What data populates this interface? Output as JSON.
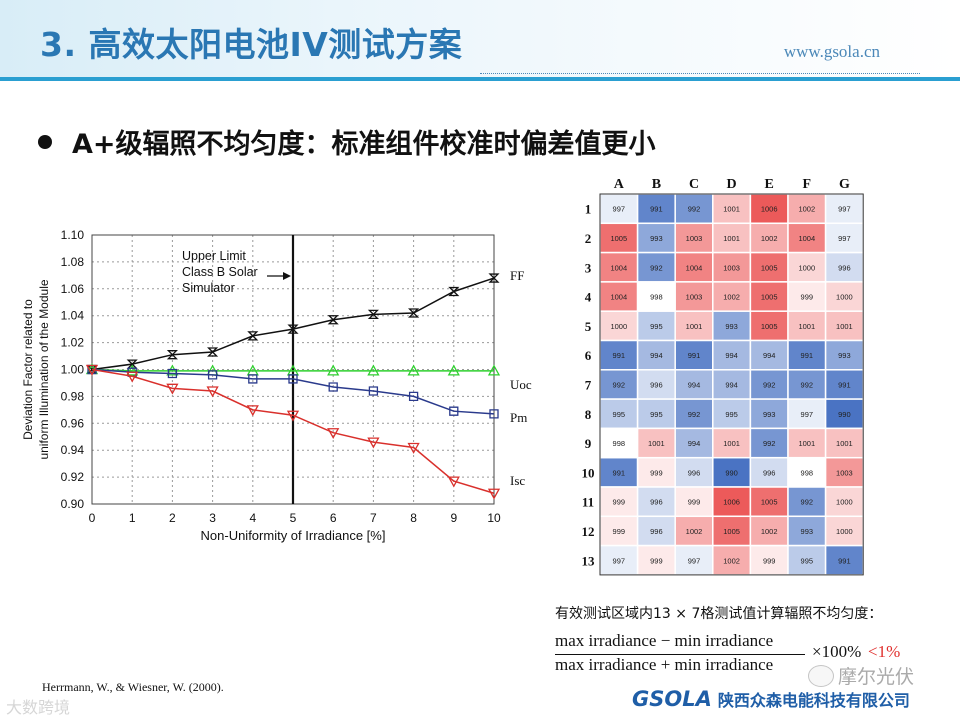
{
  "header": {
    "title": "3. 高效太阳电池IV测试方案",
    "url": "www.gsola.cn"
  },
  "bullet": {
    "text": "A+级辐照不均匀度：标准组件校准时偏差值更小"
  },
  "chart_data": {
    "type": "line",
    "title": "",
    "xlabel": "Non-Uniformity of Irradiance  [%]",
    "ylabel": [
      "Deviation Factor related to",
      "uniform Illumination of the Module"
    ],
    "xlim": [
      0,
      10
    ],
    "ylim": [
      0.9,
      1.1
    ],
    "x_ticks": [
      0,
      1,
      2,
      3,
      4,
      5,
      6,
      7,
      8,
      9,
      10
    ],
    "y_ticks": [
      "0.90",
      "0.92",
      "0.94",
      "0.96",
      "0.98",
      "1.00",
      "1.02",
      "1.04",
      "1.06",
      "1.08",
      "1.10"
    ],
    "grid": true,
    "x": [
      0,
      1,
      2,
      3,
      4,
      5,
      6,
      7,
      8,
      9,
      10
    ],
    "series": [
      {
        "name": "FF",
        "color": "#111111",
        "marker": "hourglass",
        "values": [
          1.0,
          1.004,
          1.011,
          1.013,
          1.025,
          1.03,
          1.037,
          1.041,
          1.042,
          1.058,
          1.068
        ]
      },
      {
        "name": "Uoc",
        "color": "#2fcf2f",
        "marker": "triangle-up",
        "values": [
          1.0,
          0.999,
          0.999,
          0.999,
          0.999,
          0.999,
          0.999,
          0.999,
          0.999,
          0.999,
          0.999
        ]
      },
      {
        "name": "Pm",
        "color": "#2a3a8c",
        "marker": "square",
        "values": [
          1.0,
          0.998,
          0.997,
          0.996,
          0.993,
          0.993,
          0.987,
          0.984,
          0.98,
          0.969,
          0.967
        ]
      },
      {
        "name": "Isc",
        "color": "#d9302c",
        "marker": "triangle-down",
        "values": [
          1.0,
          0.995,
          0.986,
          0.984,
          0.97,
          0.966,
          0.953,
          0.946,
          0.942,
          0.917,
          0.908
        ]
      }
    ],
    "annotation": {
      "lines": [
        "Upper Limit",
        "Class B Solar",
        "Simulator"
      ],
      "x": 5
    }
  },
  "grid_table": {
    "columns": [
      "A",
      "B",
      "C",
      "D",
      "E",
      "F",
      "G"
    ],
    "rows": [
      "1",
      "2",
      "3",
      "4",
      "5",
      "6",
      "7",
      "8",
      "9",
      "10",
      "11",
      "12",
      "13"
    ],
    "values": [
      [
        997,
        991,
        992,
        1001,
        1006,
        1002,
        997
      ],
      [
        1005,
        993,
        1003,
        1001,
        1002,
        1004,
        997
      ],
      [
        1004,
        992,
        1004,
        1003,
        1005,
        1000,
        996
      ],
      [
        1004,
        998,
        1003,
        1002,
        1005,
        999,
        1000
      ],
      [
        1000,
        995,
        1001,
        993,
        1005,
        1001,
        1001
      ],
      [
        991,
        994,
        991,
        994,
        994,
        991,
        993
      ],
      [
        992,
        996,
        994,
        994,
        992,
        992,
        991
      ],
      [
        995,
        995,
        992,
        995,
        993,
        997,
        990
      ],
      [
        998,
        1001,
        994,
        1001,
        992,
        1001,
        1001
      ],
      [
        991,
        999,
        996,
        990,
        996,
        998,
        1003
      ],
      [
        999,
        996,
        999,
        1006,
        1005,
        992,
        1000
      ],
      [
        999,
        996,
        1002,
        1005,
        1002,
        993,
        1000
      ],
      [
        997,
        999,
        997,
        1002,
        999,
        995,
        991
      ]
    ],
    "color_low": "#4a73c3",
    "color_mid": "#ffffff",
    "color_high": "#ec5a5a",
    "range": [
      990,
      1006
    ]
  },
  "grid_note": "有效测试区域内13 × 7格测试值计算辐照不均匀度：",
  "formula": {
    "numerator": "max  irradiance − min  irradiance",
    "denominator": "max  irradiance + min  irradiance",
    "multiplier": "×100%",
    "condition": "<1%"
  },
  "citation": "Herrmann, W., & Wiesner, W. (2000).",
  "logo": {
    "mark": "GSOLA",
    "name": "陕西众森电能科技有限公司"
  },
  "wechat": "摩尔光伏",
  "watermark": "大数跨境"
}
